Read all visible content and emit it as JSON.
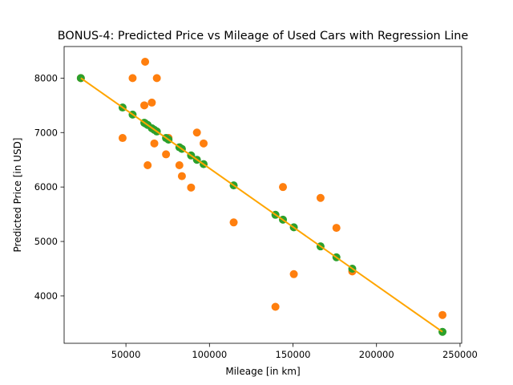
{
  "chart_data": {
    "type": "scatter",
    "title": "BONUS-4: Predicted Price vs Mileage of Used Cars with Regression Line",
    "xlabel": "Mileage [in km]",
    "ylabel": "Predicted Price [in USD]",
    "xlim": [
      13000,
      251000
    ],
    "ylim": [
      3130,
      8580
    ],
    "xticks": [
      50000,
      100000,
      150000,
      200000,
      250000
    ],
    "yticks": [
      4000,
      5000,
      6000,
      7000,
      8000
    ],
    "grid": false,
    "legend": "none",
    "colors": {
      "actual": "#ff7f0e",
      "predicted": "#2ca02c",
      "line": "#ffa500"
    },
    "series": [
      {
        "kind": "actual",
        "points": [
          [
            23000,
            8000
          ],
          [
            48000,
            6900
          ],
          [
            54000,
            8000
          ],
          [
            61000,
            7500
          ],
          [
            61500,
            8300
          ],
          [
            63000,
            6400
          ],
          [
            65500,
            7550
          ],
          [
            67000,
            6800
          ],
          [
            68500,
            8000
          ],
          [
            74000,
            6600
          ],
          [
            75500,
            6900
          ],
          [
            82000,
            6400
          ],
          [
            83500,
            6200
          ],
          [
            89000,
            5990
          ],
          [
            92500,
            7000
          ],
          [
            96500,
            6800
          ],
          [
            114500,
            5350
          ],
          [
            139500,
            3800
          ],
          [
            144000,
            6000
          ],
          [
            150500,
            4400
          ],
          [
            166500,
            5800
          ],
          [
            176000,
            5250
          ],
          [
            185500,
            4450
          ],
          [
            239500,
            3650
          ]
        ]
      },
      {
        "kind": "predicted",
        "points": [
          [
            23000,
            8000
          ],
          [
            48000,
            7460
          ],
          [
            54000,
            7330
          ],
          [
            61000,
            7180
          ],
          [
            61500,
            7170
          ],
          [
            63000,
            7140
          ],
          [
            65500,
            7080
          ],
          [
            67000,
            7050
          ],
          [
            68500,
            7020
          ],
          [
            74000,
            6900
          ],
          [
            75500,
            6870
          ],
          [
            82000,
            6730
          ],
          [
            83500,
            6700
          ],
          [
            89000,
            6580
          ],
          [
            92500,
            6500
          ],
          [
            96500,
            6420
          ],
          [
            114500,
            6030
          ],
          [
            139500,
            5490
          ],
          [
            144000,
            5400
          ],
          [
            150500,
            5260
          ],
          [
            166500,
            4910
          ],
          [
            176000,
            4710
          ],
          [
            185500,
            4500
          ],
          [
            239500,
            3340
          ]
        ]
      }
    ],
    "regression_line": {
      "x": [
        23000,
        239500
      ],
      "y": [
        8000,
        3340
      ]
    }
  }
}
